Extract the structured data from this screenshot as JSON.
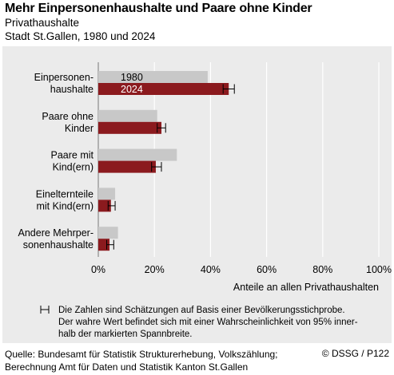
{
  "header": {
    "title": "Mehr Einpersonenhaushalte und Paare ohne Kinder",
    "subtitle": "Privathaushalte",
    "subtitle2": "Stadt St.Gallen, 1980 und 2024"
  },
  "chart_data": {
    "type": "bar",
    "orientation": "horizontal",
    "categories": [
      [
        "Einpersonen-",
        "haushalte"
      ],
      [
        "Paare ohne",
        "Kinder"
      ],
      [
        "Paare mit",
        "Kind(ern)"
      ],
      [
        "Einelternteile",
        "mit Kind(ern)"
      ],
      [
        "Andere Mehrper-",
        "sonenhaushalte"
      ]
    ],
    "series": [
      {
        "name": "1980",
        "color": "#c8c8c8",
        "values": [
          39,
          21,
          28,
          6,
          7
        ]
      },
      {
        "name": "2024",
        "color": "#8b1a1e",
        "values": [
          46.5,
          22.5,
          20.5,
          4.5,
          4
        ],
        "ci_low": [
          44.5,
          21,
          19,
          3.5,
          3
        ],
        "ci_high": [
          48.5,
          24,
          22.5,
          6,
          5.5
        ]
      }
    ],
    "xlim": [
      0,
      100
    ],
    "xticks": [
      "0%",
      "20%",
      "40%",
      "60%",
      "80%",
      "100%"
    ],
    "xlabel": "Anteile an allen Privathaushalten",
    "grid": true,
    "legend_inline": true,
    "note": [
      "Die Zahlen sind Schätzungen auf Basis einer Bevölkerungsstichprobe.",
      "Der wahre Wert befindet sich mit einer Wahrscheinlichkeit von 95% inner-",
      "halb der markierten Spannbreite."
    ]
  },
  "footer": {
    "source_line1": "Quelle: Bundesamt für Statistik Strukturerhebung, Volkszählung;",
    "source_line2": "Berechnung Amt für Daten und Statistik Kanton St.Gallen",
    "credit": "© DSSG / P122"
  }
}
